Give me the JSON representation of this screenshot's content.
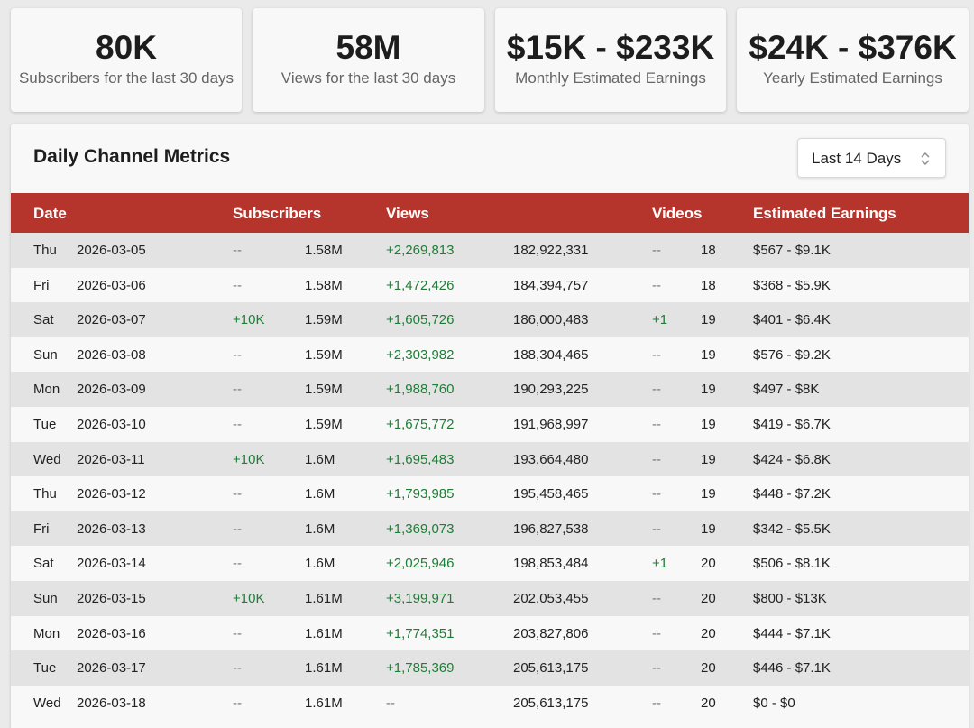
{
  "stats": [
    {
      "value": "80K",
      "label": "Subscribers for the last 30 days"
    },
    {
      "value": "58M",
      "label": "Views for the last 30 days"
    },
    {
      "value": "$15K - $233K",
      "label": "Monthly Estimated Earnings"
    },
    {
      "value": "$24K - $376K",
      "label": "Yearly Estimated Earnings"
    }
  ],
  "panel": {
    "title": "Daily Channel Metrics",
    "period_select": {
      "selected": "Last 14 Days",
      "icon": "chevron-updown-icon"
    }
  },
  "table": {
    "headers": {
      "date": "Date",
      "subscribers": "Subscribers",
      "views": "Views",
      "videos": "Videos",
      "earnings": "Estimated Earnings"
    },
    "rows": [
      {
        "day": "Thu",
        "date": "2026-03-05",
        "sub_delta": "--",
        "subs": "1.58M",
        "view_delta": "+2,269,813",
        "views": "182,922,331",
        "video_delta": "--",
        "videos": "18",
        "earnings": "$567 - $9.1K"
      },
      {
        "day": "Fri",
        "date": "2026-03-06",
        "sub_delta": "--",
        "subs": "1.58M",
        "view_delta": "+1,472,426",
        "views": "184,394,757",
        "video_delta": "--",
        "videos": "18",
        "earnings": "$368 - $5.9K"
      },
      {
        "day": "Sat",
        "date": "2026-03-07",
        "sub_delta": "+10K",
        "subs": "1.59M",
        "view_delta": "+1,605,726",
        "views": "186,000,483",
        "video_delta": "+1",
        "videos": "19",
        "earnings": "$401 - $6.4K"
      },
      {
        "day": "Sun",
        "date": "2026-03-08",
        "sub_delta": "--",
        "subs": "1.59M",
        "view_delta": "+2,303,982",
        "views": "188,304,465",
        "video_delta": "--",
        "videos": "19",
        "earnings": "$576 - $9.2K"
      },
      {
        "day": "Mon",
        "date": "2026-03-09",
        "sub_delta": "--",
        "subs": "1.59M",
        "view_delta": "+1,988,760",
        "views": "190,293,225",
        "video_delta": "--",
        "videos": "19",
        "earnings": "$497 - $8K"
      },
      {
        "day": "Tue",
        "date": "2026-03-10",
        "sub_delta": "--",
        "subs": "1.59M",
        "view_delta": "+1,675,772",
        "views": "191,968,997",
        "video_delta": "--",
        "videos": "19",
        "earnings": "$419 - $6.7K"
      },
      {
        "day": "Wed",
        "date": "2026-03-11",
        "sub_delta": "+10K",
        "subs": "1.6M",
        "view_delta": "+1,695,483",
        "views": "193,664,480",
        "video_delta": "--",
        "videos": "19",
        "earnings": "$424 - $6.8K"
      },
      {
        "day": "Thu",
        "date": "2026-03-12",
        "sub_delta": "--",
        "subs": "1.6M",
        "view_delta": "+1,793,985",
        "views": "195,458,465",
        "video_delta": "--",
        "videos": "19",
        "earnings": "$448 - $7.2K"
      },
      {
        "day": "Fri",
        "date": "2026-03-13",
        "sub_delta": "--",
        "subs": "1.6M",
        "view_delta": "+1,369,073",
        "views": "196,827,538",
        "video_delta": "--",
        "videos": "19",
        "earnings": "$342 - $5.5K"
      },
      {
        "day": "Sat",
        "date": "2026-03-14",
        "sub_delta": "--",
        "subs": "1.6M",
        "view_delta": "+2,025,946",
        "views": "198,853,484",
        "video_delta": "+1",
        "videos": "20",
        "earnings": "$506 - $8.1K"
      },
      {
        "day": "Sun",
        "date": "2026-03-15",
        "sub_delta": "+10K",
        "subs": "1.61M",
        "view_delta": "+3,199,971",
        "views": "202,053,455",
        "video_delta": "--",
        "videos": "20",
        "earnings": "$800 - $13K"
      },
      {
        "day": "Mon",
        "date": "2026-03-16",
        "sub_delta": "--",
        "subs": "1.61M",
        "view_delta": "+1,774,351",
        "views": "203,827,806",
        "video_delta": "--",
        "videos": "20",
        "earnings": "$444 - $7.1K"
      },
      {
        "day": "Tue",
        "date": "2026-03-17",
        "sub_delta": "--",
        "subs": "1.61M",
        "view_delta": "+1,785,369",
        "views": "205,613,175",
        "video_delta": "--",
        "videos": "20",
        "earnings": "$446 - $7.1K"
      },
      {
        "day": "Wed",
        "date": "2026-03-18",
        "sub_delta": "--",
        "subs": "1.61M",
        "view_delta": "--",
        "views": "205,613,175",
        "video_delta": "--",
        "videos": "20",
        "earnings": "$0 - $0"
      }
    ]
  },
  "colors": {
    "header_bg": "#b5342c",
    "positive": "#1e7d36",
    "row_alt": "#e3e3e3"
  }
}
